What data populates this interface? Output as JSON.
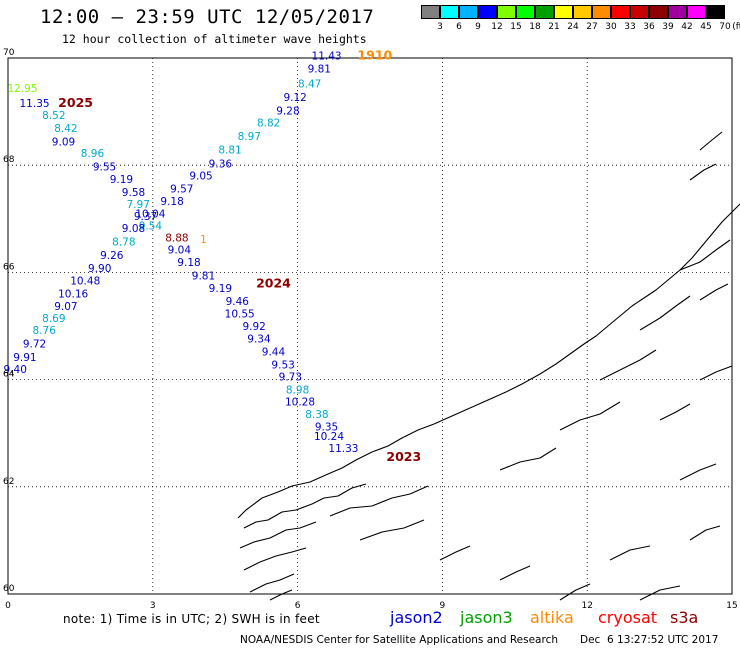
{
  "title": "12:00 – 23:59 UTC 12/05/2017",
  "subtitle": "12 hour collection of altimeter wave heights",
  "colorbar": {
    "unit": "(ft)",
    "bins": [
      {
        "label": "3",
        "color": "#808080"
      },
      {
        "label": "6",
        "color": "#00ffff"
      },
      {
        "label": "9",
        "color": "#00b4ff"
      },
      {
        "label": "12",
        "color": "#0000ff"
      },
      {
        "label": "15",
        "color": "#7fff00"
      },
      {
        "label": "18",
        "color": "#00ff00"
      },
      {
        "label": "21",
        "color": "#00a000"
      },
      {
        "label": "24",
        "color": "#ffff00"
      },
      {
        "label": "27",
        "color": "#ffc800"
      },
      {
        "label": "30",
        "color": "#ff8c00"
      },
      {
        "label": "33",
        "color": "#ff0000"
      },
      {
        "label": "36",
        "color": "#c80000"
      },
      {
        "label": "39",
        "color": "#8c0000"
      },
      {
        "label": "42",
        "color": "#a000a0"
      },
      {
        "label": "45",
        "color": "#ff00ff"
      },
      {
        "label": "70",
        "color": "#000000"
      }
    ]
  },
  "axes": {
    "x_ticks": [
      "0",
      "3",
      "6",
      "9",
      "12",
      "15"
    ],
    "y_ticks": [
      "70",
      "68",
      "66",
      "64",
      "62",
      "60"
    ],
    "lon_range": [
      0,
      15
    ],
    "lat_range": [
      60,
      70
    ]
  },
  "tracks": [
    {
      "label": "1910",
      "color": "#ff8c00",
      "lon": 7.6,
      "lat": 69.97,
      "emphasis": true
    },
    {
      "label": "2025",
      "color": "#8b0000",
      "lon": 1.4,
      "lat": 69.09,
      "emphasis": true
    },
    {
      "label": "2024",
      "color": "#8b0000",
      "lon": 5.5,
      "lat": 65.72,
      "emphasis": true
    },
    {
      "label": "2023",
      "color": "#8b0000",
      "lon": 8.2,
      "lat": 62.48,
      "emphasis": true
    }
  ],
  "observations": [
    {
      "value": "11.43",
      "lon": 6.6,
      "lat": 69.97,
      "color": "#0000cc"
    },
    {
      "value": "9.81",
      "lon": 6.45,
      "lat": 69.73,
      "color": "#0000cc"
    },
    {
      "value": "8.47",
      "lon": 6.25,
      "lat": 69.45,
      "color": "#00aacc"
    },
    {
      "value": "9.12",
      "lon": 5.95,
      "lat": 69.2,
      "color": "#0000cc"
    },
    {
      "value": "9.28",
      "lon": 5.8,
      "lat": 68.95,
      "color": "#0000cc"
    },
    {
      "value": "8.82",
      "lon": 5.4,
      "lat": 68.72,
      "color": "#00aacc"
    },
    {
      "value": "8.97",
      "lon": 5.0,
      "lat": 68.47,
      "color": "#00aacc"
    },
    {
      "value": "8.81",
      "lon": 4.6,
      "lat": 68.22,
      "color": "#00aacc"
    },
    {
      "value": "9.36",
      "lon": 4.4,
      "lat": 67.96,
      "color": "#0000cc"
    },
    {
      "value": "9.05",
      "lon": 4.0,
      "lat": 67.73,
      "color": "#0000cc"
    },
    {
      "value": "9.57",
      "lon": 3.6,
      "lat": 67.49,
      "color": "#0000cc"
    },
    {
      "value": "9.18",
      "lon": 3.4,
      "lat": 67.26,
      "color": "#0000cc"
    },
    {
      "value": "10.04",
      "lon": 2.95,
      "lat": 67.02,
      "color": "#0000cc"
    },
    {
      "value": "9.54",
      "lon": 2.95,
      "lat": 66.8,
      "color": "#00aacc"
    },
    {
      "value": "8.88",
      "lon": 3.5,
      "lat": 66.58,
      "color": "#8b0000"
    },
    {
      "value": "1",
      "lon": 4.05,
      "lat": 66.55,
      "color": "#ff8c00"
    },
    {
      "value": "9.04",
      "lon": 3.55,
      "lat": 66.35,
      "color": "#0000cc"
    },
    {
      "value": "9.18",
      "lon": 3.75,
      "lat": 66.12,
      "color": "#0000cc"
    },
    {
      "value": "9.81",
      "lon": 4.05,
      "lat": 65.87,
      "color": "#0000cc"
    },
    {
      "value": "9.19",
      "lon": 4.4,
      "lat": 65.63,
      "color": "#0000cc"
    },
    {
      "value": "9.46",
      "lon": 4.75,
      "lat": 65.39,
      "color": "#0000cc"
    },
    {
      "value": "10.55",
      "lon": 4.8,
      "lat": 65.16,
      "color": "#0000cc"
    },
    {
      "value": "9.92",
      "lon": 5.1,
      "lat": 64.93,
      "color": "#0000cc"
    },
    {
      "value": "9.34",
      "lon": 5.2,
      "lat": 64.69,
      "color": "#0000cc"
    },
    {
      "value": "9.44",
      "lon": 5.5,
      "lat": 64.45,
      "color": "#0000cc"
    },
    {
      "value": "9.53",
      "lon": 5.7,
      "lat": 64.21,
      "color": "#0000cc"
    },
    {
      "value": "9.73",
      "lon": 5.85,
      "lat": 63.98,
      "color": "#0000cc"
    },
    {
      "value": "8.98",
      "lon": 6.0,
      "lat": 63.74,
      "color": "#00aacc"
    },
    {
      "value": "10.28",
      "lon": 6.05,
      "lat": 63.52,
      "color": "#0000cc"
    },
    {
      "value": "8.38",
      "lon": 6.4,
      "lat": 63.28,
      "color": "#00aacc"
    },
    {
      "value": "9.35",
      "lon": 6.6,
      "lat": 63.05,
      "color": "#0000cc"
    },
    {
      "value": "10.24",
      "lon": 6.65,
      "lat": 62.87,
      "color": "#0000cc"
    },
    {
      "value": "11.33",
      "lon": 6.95,
      "lat": 62.65,
      "color": "#0000cc"
    },
    {
      "value": "12.95",
      "lon": 0.3,
      "lat": 69.37,
      "color": "#7fff00"
    },
    {
      "value": "11.35",
      "lon": 0.55,
      "lat": 69.09,
      "color": "#0000cc"
    },
    {
      "value": "8.52",
      "lon": 0.95,
      "lat": 68.86,
      "color": "#00aacc"
    },
    {
      "value": "8.42",
      "lon": 1.2,
      "lat": 68.62,
      "color": "#00aacc"
    },
    {
      "value": "9.09",
      "lon": 1.15,
      "lat": 68.37,
      "color": "#0000cc"
    },
    {
      "value": "8.96",
      "lon": 1.75,
      "lat": 68.15,
      "color": "#00aacc"
    },
    {
      "value": "9.55",
      "lon": 2.0,
      "lat": 67.9,
      "color": "#0000cc"
    },
    {
      "value": "9.19",
      "lon": 2.35,
      "lat": 67.67,
      "color": "#0000cc"
    },
    {
      "value": "9.58",
      "lon": 2.6,
      "lat": 67.43,
      "color": "#0000cc"
    },
    {
      "value": "7.97",
      "lon": 2.7,
      "lat": 67.2,
      "color": "#00aacc"
    },
    {
      "value": "9.37",
      "lon": 2.85,
      "lat": 66.98,
      "color": "#0000cc"
    },
    {
      "value": "9.08",
      "lon": 2.6,
      "lat": 66.75,
      "color": "#0000cc"
    },
    {
      "value": "8.78",
      "lon": 2.4,
      "lat": 66.5,
      "color": "#00aacc"
    },
    {
      "value": "9.26",
      "lon": 2.15,
      "lat": 66.25,
      "color": "#0000cc"
    },
    {
      "value": "9.90",
      "lon": 1.9,
      "lat": 66.01,
      "color": "#0000cc"
    },
    {
      "value": "10.48",
      "lon": 1.6,
      "lat": 65.77,
      "color": "#0000cc"
    },
    {
      "value": "10.16",
      "lon": 1.35,
      "lat": 65.53,
      "color": "#0000cc"
    },
    {
      "value": "9.07",
      "lon": 1.2,
      "lat": 65.3,
      "color": "#0000cc"
    },
    {
      "value": "8.69",
      "lon": 0.95,
      "lat": 65.07,
      "color": "#00aacc"
    },
    {
      "value": "8.76",
      "lon": 0.75,
      "lat": 64.85,
      "color": "#00aacc"
    },
    {
      "value": "9.72",
      "lon": 0.55,
      "lat": 64.6,
      "color": "#0000cc"
    },
    {
      "value": "9.91",
      "lon": 0.35,
      "lat": 64.35,
      "color": "#0000cc"
    },
    {
      "value": "9.40",
      "lon": 0.15,
      "lat": 64.12,
      "color": "#0000cc"
    }
  ],
  "note": "note:  1) Time is in UTC;  2) SWH is in feet",
  "satellites": [
    {
      "name": "jason2",
      "color": "#0000cc"
    },
    {
      "name": "jason3",
      "color": "#00a000"
    },
    {
      "name": "altika",
      "color": "#ff8c00"
    },
    {
      "name": "cryosat",
      "color": "#ff0000"
    },
    {
      "name": "s3a",
      "color": "#8b0000"
    }
  ],
  "credit": "NOAA/NESDIS Center for Satellite Applications and Research",
  "timestamp": "Dec  6 13:27:52 UTC 2017"
}
